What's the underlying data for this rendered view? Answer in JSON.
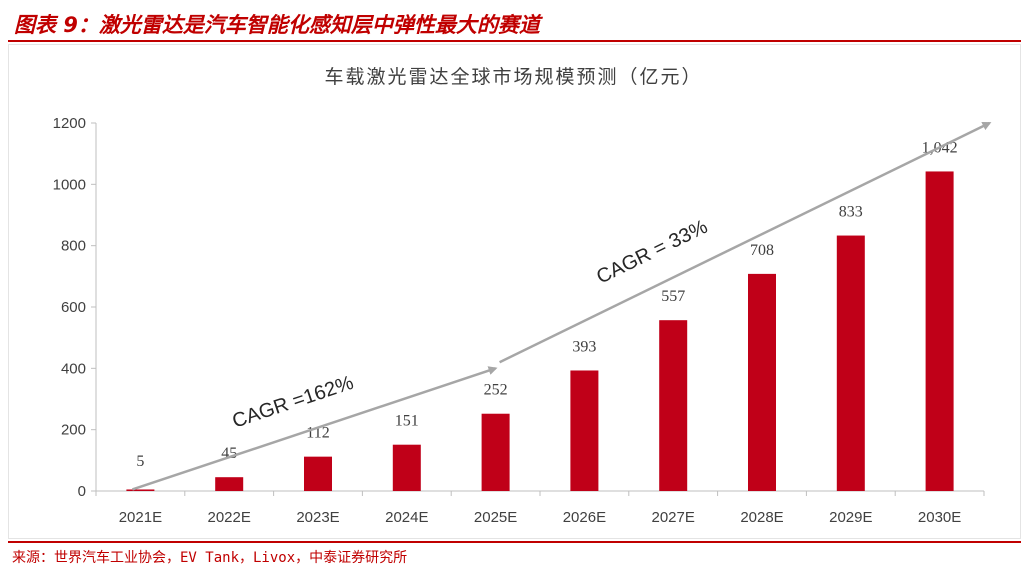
{
  "figure": {
    "title": "图表 9：激光雷达是汽车智能化感知层中弹性最大的赛道",
    "source": "来源：世界汽车工业协会，EV Tank，Livox，中泰证券研究所"
  },
  "colors": {
    "accent": "#c00000",
    "bar": "#c00018",
    "arrow": "#a6a6a6",
    "axis": "#bfbfbf",
    "text": "#404040"
  },
  "chart_data": {
    "type": "bar",
    "title": "车载激光雷达全球市场规模预测（亿元）",
    "categories": [
      "2021E",
      "2022E",
      "2023E",
      "2024E",
      "2025E",
      "2026E",
      "2027E",
      "2028E",
      "2029E",
      "2030E"
    ],
    "values": [
      5,
      45,
      112,
      151,
      252,
      393,
      557,
      708,
      833,
      1042
    ],
    "data_labels": [
      "5",
      "45",
      "112",
      "151",
      "252",
      "393",
      "557",
      "708",
      "833",
      "1,042"
    ],
    "ylim": [
      0,
      1200
    ],
    "yticks": [
      0,
      200,
      400,
      600,
      800,
      1000,
      1200
    ],
    "xlabel": "",
    "ylabel": "",
    "grid": false,
    "annotations": [
      {
        "text": "CAGR =162%",
        "from": [
          "2021E",
          5
        ],
        "to": [
          "2025E",
          400
        ]
      },
      {
        "text": "CAGR = 33%",
        "from": [
          "2025E",
          420
        ],
        "to": [
          "2030E",
          1200
        ]
      }
    ]
  }
}
